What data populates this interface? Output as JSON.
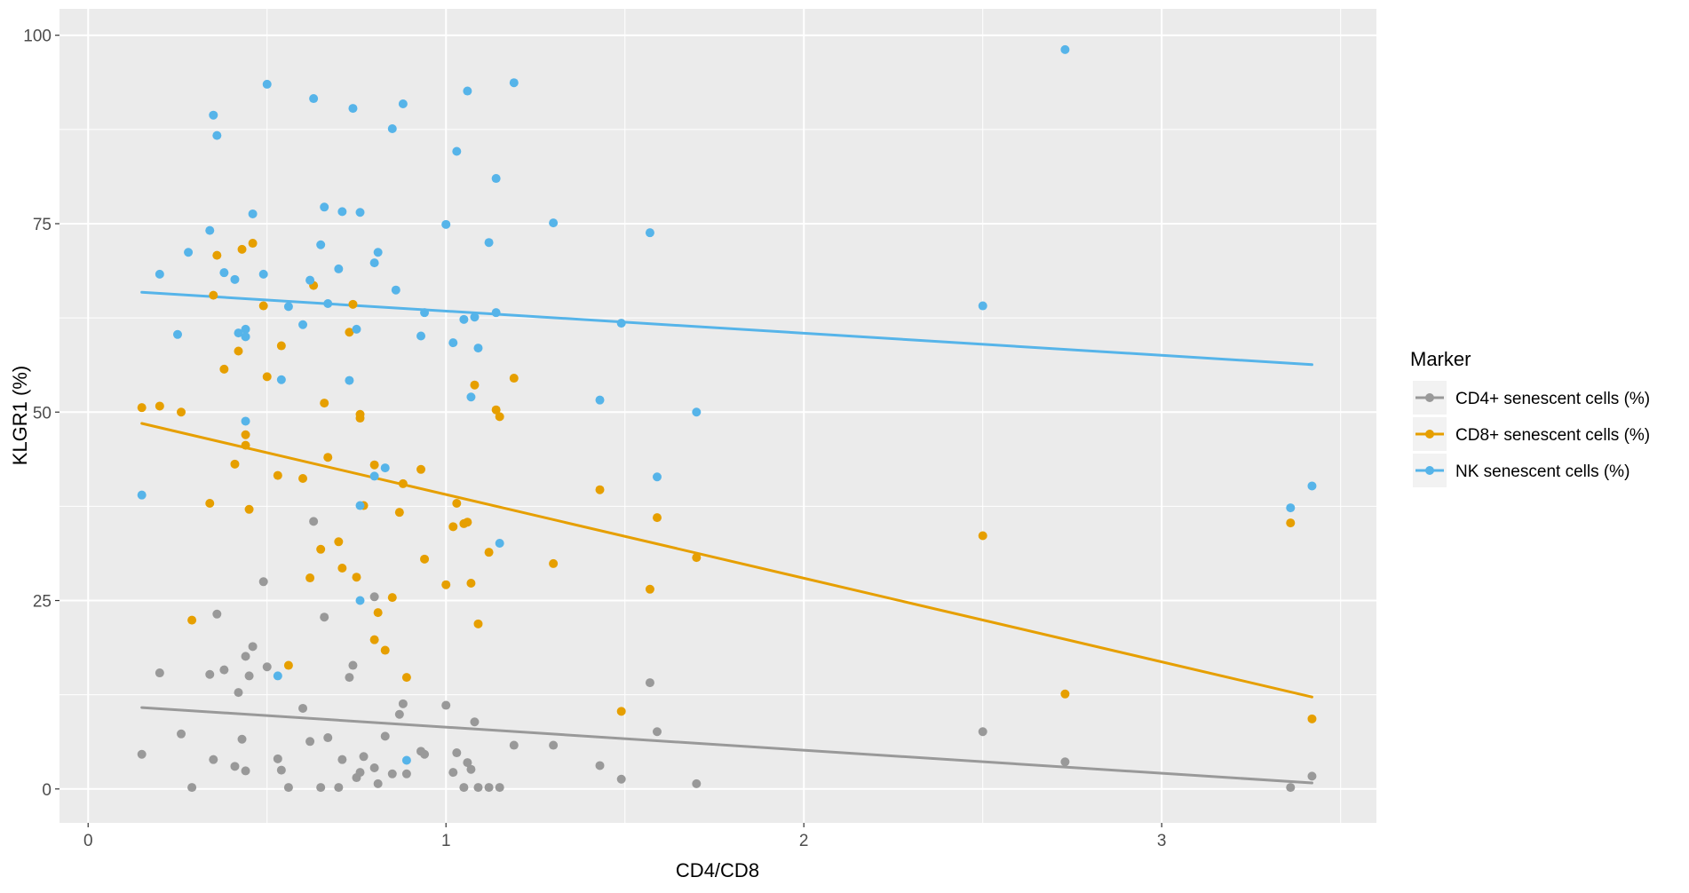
{
  "chart_data": {
    "type": "scatter",
    "title": "",
    "xlabel": "CD4/CD8",
    "ylabel": "KLGR1 (%)",
    "xlim": [
      -0.08,
      3.6
    ],
    "ylim": [
      -4.5,
      103.5
    ],
    "xticks": [
      0,
      1,
      2,
      3
    ],
    "xtick_labels": [
      "0",
      "1",
      "2",
      "3"
    ],
    "yticks": [
      0,
      25,
      50,
      75,
      100
    ],
    "ytick_labels": [
      "0",
      "25",
      "50",
      "75",
      "100"
    ],
    "grid": true,
    "legend": {
      "title": "Marker",
      "placement": "right"
    },
    "series": [
      {
        "name": "CD4+ senescent cells (%)",
        "color": "#999999",
        "trend": {
          "x": [
            0.15,
            3.42
          ],
          "y": [
            10.8,
            0.8
          ]
        },
        "points": [
          [
            0.15,
            4.6
          ],
          [
            0.2,
            15.4
          ],
          [
            0.26,
            7.3
          ],
          [
            0.29,
            0.2
          ],
          [
            0.34,
            15.2
          ],
          [
            0.35,
            3.9
          ],
          [
            0.36,
            23.2
          ],
          [
            0.38,
            15.8
          ],
          [
            0.41,
            3.0
          ],
          [
            0.42,
            12.8
          ],
          [
            0.43,
            6.6
          ],
          [
            0.44,
            2.4
          ],
          [
            0.45,
            15.0
          ],
          [
            0.44,
            17.6
          ],
          [
            0.46,
            18.9
          ],
          [
            0.49,
            27.5
          ],
          [
            0.5,
            16.2
          ],
          [
            0.53,
            4.0
          ],
          [
            0.54,
            2.5
          ],
          [
            0.56,
            0.2
          ],
          [
            0.6,
            10.7
          ],
          [
            0.62,
            6.3
          ],
          [
            0.63,
            35.5
          ],
          [
            0.65,
            0.2
          ],
          [
            0.66,
            22.8
          ],
          [
            0.67,
            6.8
          ],
          [
            0.7,
            0.2
          ],
          [
            0.71,
            3.9
          ],
          [
            0.73,
            14.8
          ],
          [
            0.74,
            16.4
          ],
          [
            0.75,
            1.5
          ],
          [
            0.76,
            2.2
          ],
          [
            0.77,
            4.3
          ],
          [
            0.8,
            25.5
          ],
          [
            0.81,
            0.7
          ],
          [
            0.8,
            2.8
          ],
          [
            0.83,
            7.0
          ],
          [
            0.85,
            2.0
          ],
          [
            0.87,
            9.9
          ],
          [
            0.88,
            11.3
          ],
          [
            0.89,
            2.0
          ],
          [
            0.93,
            5.0
          ],
          [
            0.94,
            4.6
          ],
          [
            1.0,
            11.1
          ],
          [
            1.02,
            2.2
          ],
          [
            1.03,
            4.8
          ],
          [
            1.05,
            0.2
          ],
          [
            1.06,
            3.5
          ],
          [
            1.07,
            2.6
          ],
          [
            1.08,
            8.9
          ],
          [
            1.09,
            0.2
          ],
          [
            1.12,
            0.2
          ],
          [
            1.15,
            0.2
          ],
          [
            1.19,
            5.8
          ],
          [
            1.3,
            5.8
          ],
          [
            1.43,
            3.1
          ],
          [
            1.49,
            1.3
          ],
          [
            1.57,
            14.1
          ],
          [
            1.59,
            7.6
          ],
          [
            1.7,
            0.7
          ],
          [
            2.5,
            7.6
          ],
          [
            2.73,
            3.6
          ],
          [
            3.36,
            0.2
          ],
          [
            3.42,
            1.7
          ]
        ]
      },
      {
        "name": "CD8+ senescent cells (%)",
        "color": "#E69F00",
        "trend": {
          "x": [
            0.15,
            3.42
          ],
          "y": [
            48.5,
            12.2
          ]
        },
        "points": [
          [
            0.15,
            50.6
          ],
          [
            0.2,
            50.8
          ],
          [
            0.26,
            50.0
          ],
          [
            0.29,
            22.4
          ],
          [
            0.34,
            37.9
          ],
          [
            0.35,
            65.5
          ],
          [
            0.36,
            70.8
          ],
          [
            0.38,
            55.7
          ],
          [
            0.41,
            43.1
          ],
          [
            0.42,
            58.1
          ],
          [
            0.43,
            71.6
          ],
          [
            0.44,
            47.0
          ],
          [
            0.44,
            45.6
          ],
          [
            0.45,
            37.1
          ],
          [
            0.46,
            72.4
          ],
          [
            0.49,
            64.1
          ],
          [
            0.5,
            54.7
          ],
          [
            0.53,
            41.6
          ],
          [
            0.54,
            58.8
          ],
          [
            0.56,
            16.4
          ],
          [
            0.6,
            41.2
          ],
          [
            0.62,
            28.0
          ],
          [
            0.63,
            66.8
          ],
          [
            0.65,
            31.8
          ],
          [
            0.66,
            51.2
          ],
          [
            0.67,
            44.0
          ],
          [
            0.7,
            32.8
          ],
          [
            0.71,
            29.3
          ],
          [
            0.73,
            60.6
          ],
          [
            0.74,
            64.3
          ],
          [
            0.75,
            28.1
          ],
          [
            0.76,
            49.7
          ],
          [
            0.77,
            37.6
          ],
          [
            0.76,
            49.2
          ],
          [
            0.8,
            43.0
          ],
          [
            0.81,
            23.4
          ],
          [
            0.8,
            19.8
          ],
          [
            0.83,
            18.4
          ],
          [
            0.85,
            25.4
          ],
          [
            0.87,
            36.7
          ],
          [
            0.88,
            40.5
          ],
          [
            0.89,
            14.8
          ],
          [
            0.93,
            42.4
          ],
          [
            0.94,
            30.5
          ],
          [
            1.0,
            27.1
          ],
          [
            1.02,
            34.8
          ],
          [
            1.03,
            37.9
          ],
          [
            1.05,
            35.2
          ],
          [
            1.06,
            35.4
          ],
          [
            1.07,
            27.3
          ],
          [
            1.08,
            53.6
          ],
          [
            1.09,
            21.9
          ],
          [
            1.12,
            31.4
          ],
          [
            1.14,
            50.3
          ],
          [
            1.15,
            49.4
          ],
          [
            1.19,
            54.5
          ],
          [
            1.3,
            29.9
          ],
          [
            1.43,
            39.7
          ],
          [
            1.49,
            10.3
          ],
          [
            1.57,
            26.5
          ],
          [
            1.59,
            36.0
          ],
          [
            1.7,
            30.7
          ],
          [
            2.5,
            33.6
          ],
          [
            2.73,
            12.6
          ],
          [
            3.36,
            35.3
          ],
          [
            3.42,
            9.3
          ]
        ]
      },
      {
        "name": "NK senescent cells (%)",
        "color": "#56B4E9",
        "trend": {
          "x": [
            0.15,
            3.42
          ],
          "y": [
            65.9,
            56.3
          ]
        },
        "points": [
          [
            0.15,
            39.0
          ],
          [
            0.2,
            68.3
          ],
          [
            0.25,
            60.3
          ],
          [
            0.28,
            71.2
          ],
          [
            0.34,
            74.1
          ],
          [
            0.35,
            89.4
          ],
          [
            0.36,
            86.7
          ],
          [
            0.38,
            68.5
          ],
          [
            0.41,
            67.6
          ],
          [
            0.42,
            60.5
          ],
          [
            0.44,
            60.0
          ],
          [
            0.44,
            48.8
          ],
          [
            0.44,
            61.0
          ],
          [
            0.46,
            76.3
          ],
          [
            0.49,
            68.3
          ],
          [
            0.5,
            93.5
          ],
          [
            0.53,
            15.0
          ],
          [
            0.54,
            54.3
          ],
          [
            0.56,
            64.0
          ],
          [
            0.6,
            61.6
          ],
          [
            0.62,
            67.5
          ],
          [
            0.63,
            91.6
          ],
          [
            0.65,
            72.2
          ],
          [
            0.66,
            77.2
          ],
          [
            0.67,
            64.4
          ],
          [
            0.7,
            69.0
          ],
          [
            0.71,
            76.6
          ],
          [
            0.73,
            54.2
          ],
          [
            0.74,
            90.3
          ],
          [
            0.75,
            61.0
          ],
          [
            0.76,
            76.5
          ],
          [
            0.76,
            37.6
          ],
          [
            0.76,
            25.0
          ],
          [
            0.8,
            69.8
          ],
          [
            0.81,
            71.2
          ],
          [
            0.8,
            41.5
          ],
          [
            0.83,
            42.6
          ],
          [
            0.85,
            87.6
          ],
          [
            0.86,
            66.2
          ],
          [
            0.88,
            90.9
          ],
          [
            0.89,
            3.8
          ],
          [
            0.93,
            60.1
          ],
          [
            0.94,
            63.2
          ],
          [
            1.0,
            74.9
          ],
          [
            1.02,
            59.2
          ],
          [
            1.03,
            84.6
          ],
          [
            1.05,
            62.3
          ],
          [
            1.06,
            92.6
          ],
          [
            1.07,
            52.0
          ],
          [
            1.08,
            62.6
          ],
          [
            1.09,
            58.5
          ],
          [
            1.12,
            72.5
          ],
          [
            1.14,
            81.0
          ],
          [
            1.14,
            63.2
          ],
          [
            1.15,
            32.6
          ],
          [
            1.19,
            93.7
          ],
          [
            1.3,
            75.1
          ],
          [
            1.43,
            51.6
          ],
          [
            1.49,
            61.8
          ],
          [
            1.57,
            73.8
          ],
          [
            1.59,
            41.4
          ],
          [
            1.7,
            50.0
          ],
          [
            2.5,
            64.1
          ],
          [
            2.73,
            98.1
          ],
          [
            3.36,
            37.3
          ],
          [
            3.42,
            40.2
          ]
        ]
      }
    ]
  }
}
